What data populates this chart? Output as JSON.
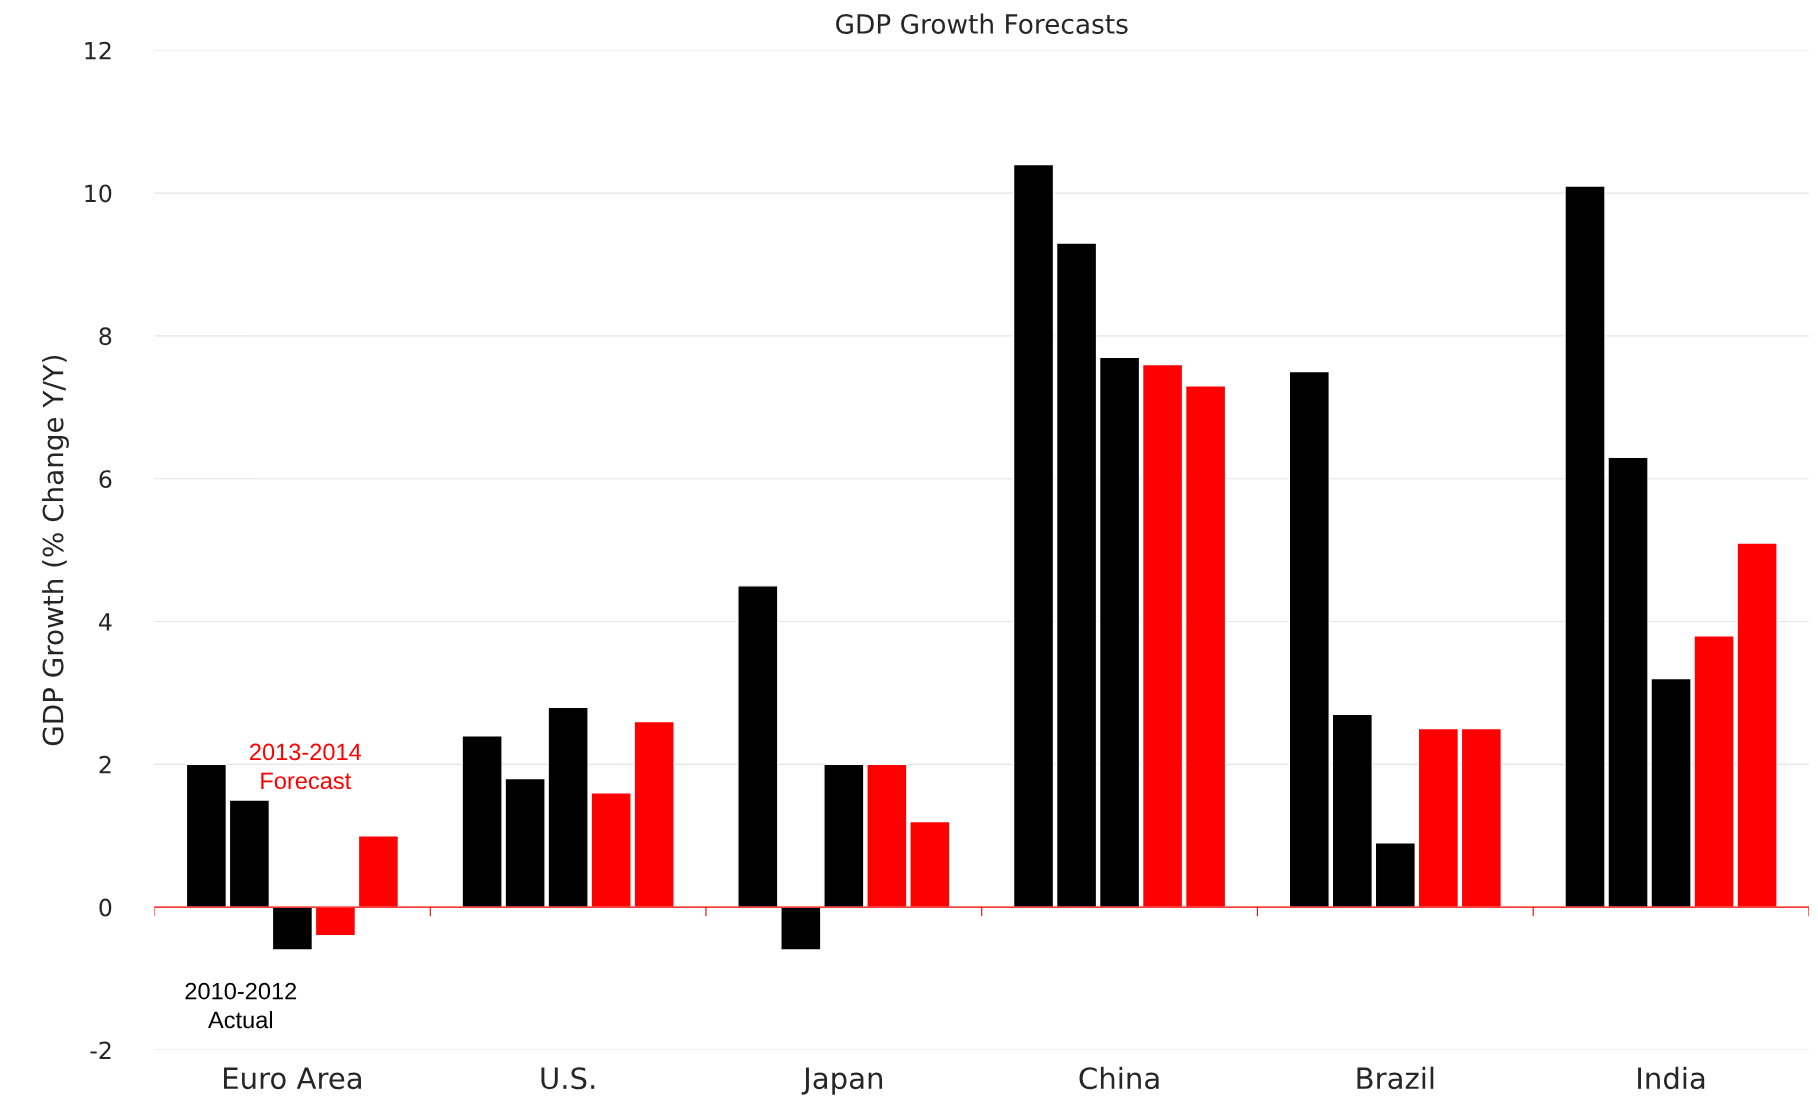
{
  "chart_data": {
    "type": "bar",
    "title": "GDP Growth Forecasts",
    "ylabel": "GDP Growth (% Change Y/Y)",
    "categories": [
      "Euro Area",
      "U.S.",
      "Japan",
      "China",
      "Brazil",
      "India"
    ],
    "series": [
      {
        "color": "#000000",
        "values": [
          2.0,
          2.4,
          4.5,
          10.4,
          7.5,
          10.1
        ]
      },
      {
        "color": "#000000",
        "values": [
          1.5,
          1.8,
          -0.6,
          9.3,
          2.7,
          6.3
        ]
      },
      {
        "color": "#000000",
        "values": [
          -0.6,
          2.8,
          2.0,
          7.7,
          0.9,
          3.2
        ]
      },
      {
        "color": "#ff0000",
        "values": [
          -0.4,
          1.6,
          2.0,
          7.6,
          2.5,
          3.8
        ]
      },
      {
        "color": "#ff0000",
        "values": [
          1.0,
          2.6,
          1.2,
          7.3,
          2.5,
          5.1
        ]
      }
    ],
    "annotations": [
      "2010-2012\nActual",
      "2013-2014\nForecast"
    ],
    "ref_lines": [
      {
        "axis": "y",
        "value": 0,
        "color": "#ff0000"
      }
    ],
    "ylim": [
      -2,
      12
    ],
    "yticks": [
      -2,
      0,
      2,
      4,
      6,
      8,
      10,
      12
    ],
    "grid": "y"
  }
}
